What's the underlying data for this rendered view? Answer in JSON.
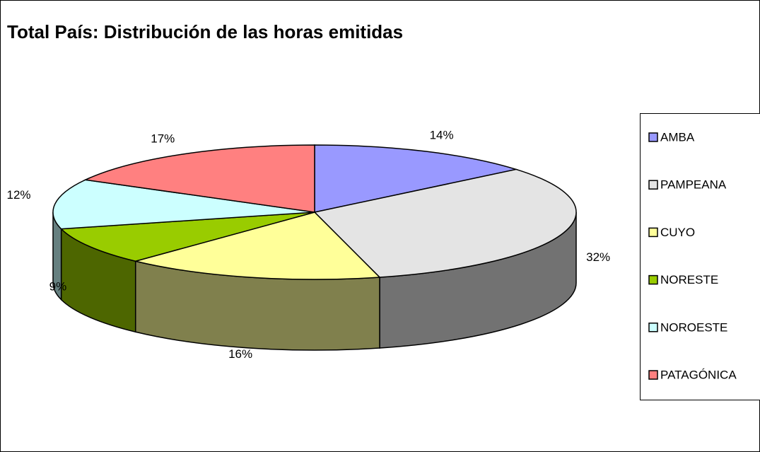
{
  "chart_data": {
    "type": "pie",
    "title": "Total País: Distribución de las horas emitidas",
    "categories": [
      "AMBA",
      "PAMPEANA",
      "CUYO",
      "NORESTE",
      "NOROESTE",
      "PATAGÓNICA"
    ],
    "values": [
      14,
      32,
      16,
      9,
      12,
      17
    ],
    "value_labels": [
      "14%",
      "32%",
      "16%",
      "9%",
      "12%",
      "17%"
    ],
    "colors": [
      "#9999ff",
      "#e4e4e4",
      "#ffff99",
      "#99cc00",
      "#ccffff",
      "#ff8080"
    ],
    "legend": "right"
  }
}
